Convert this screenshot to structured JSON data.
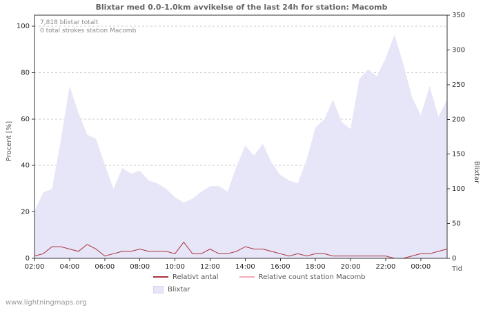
{
  "watermark": "www.lightningmaps.org",
  "chart_data": {
    "type": "area",
    "title": "Blixtar med 0.0-1.0km avvikelse of the last 24h for station: Macomb",
    "annotations": [
      "7,818 blixtar totalt",
      "0 total strokes station Macomb"
    ],
    "x_label": "Tid",
    "left_ylabel": "Procent  [%]",
    "right_ylabel": "Blixtar",
    "left_ylim": [
      0,
      100
    ],
    "right_ylim": [
      0,
      350
    ],
    "left_ticks": [
      0,
      20,
      40,
      60,
      80,
      100
    ],
    "right_ticks": [
      0,
      50,
      100,
      150,
      200,
      250,
      300,
      350
    ],
    "x_tick_labels": [
      "02:00",
      "04:00",
      "06:00",
      "08:00",
      "10:00",
      "12:00",
      "14:00",
      "16:00",
      "18:00",
      "20:00",
      "22:00",
      "00:00"
    ],
    "x_tick_hours": [
      0,
      2,
      4,
      6,
      8,
      10,
      12,
      14,
      16,
      18,
      20,
      22
    ],
    "x_span_hours": 23.5,
    "grid": "horizontal-dashed",
    "legend_position": "bottom",
    "x": [
      "02:00",
      "02:30",
      "03:00",
      "03:30",
      "04:00",
      "04:30",
      "05:00",
      "05:30",
      "06:00",
      "06:30",
      "07:00",
      "07:30",
      "08:00",
      "08:30",
      "09:00",
      "09:30",
      "10:00",
      "10:30",
      "11:00",
      "11:30",
      "12:00",
      "12:30",
      "13:00",
      "13:30",
      "14:00",
      "14:30",
      "15:00",
      "15:30",
      "16:00",
      "16:30",
      "17:00",
      "17:30",
      "18:00",
      "18:30",
      "19:00",
      "19:30",
      "20:00",
      "20:30",
      "21:00",
      "21:30",
      "22:00",
      "22:30",
      "23:00",
      "23:30",
      "00:00",
      "00:30",
      "01:00",
      "01:30"
    ],
    "series": [
      {
        "name": "Blixtar",
        "type": "area",
        "axis": "right",
        "color": "#e7e5f8",
        "values": [
          68,
          95,
          100,
          170,
          248,
          210,
          178,
          172,
          135,
          100,
          130,
          122,
          126,
          112,
          108,
          100,
          88,
          80,
          86,
          96,
          104,
          104,
          96,
          132,
          162,
          148,
          165,
          138,
          120,
          112,
          108,
          142,
          188,
          200,
          228,
          196,
          186,
          258,
          272,
          262,
          288,
          322,
          280,
          232,
          206,
          248,
          204,
          228
        ]
      },
      {
        "name": "Relativt antal",
        "type": "line",
        "axis": "left",
        "color": "#a8323a",
        "values": [
          1,
          2,
          5,
          5,
          4,
          3,
          6,
          4,
          1,
          2,
          3,
          3,
          4,
          3,
          3,
          3,
          2,
          7,
          2,
          2,
          4,
          2,
          2,
          3,
          5,
          4,
          4,
          3,
          2,
          1,
          2,
          1,
          2,
          2,
          1,
          1,
          1,
          1,
          1,
          1,
          1,
          0,
          0,
          1,
          2,
          2,
          3,
          4
        ]
      },
      {
        "name": "Relative count station Macomb",
        "type": "line",
        "axis": "left",
        "color": "#f2aab6",
        "values": [
          0,
          0,
          0,
          0,
          0,
          0,
          0,
          0,
          0,
          0,
          0,
          0,
          0,
          0,
          0,
          0,
          0,
          0,
          0,
          0,
          0,
          0,
          0,
          0,
          0,
          0,
          0,
          0,
          0,
          0,
          0,
          0,
          0,
          0,
          0,
          0,
          0,
          0,
          0,
          0,
          0,
          0,
          0,
          0,
          0,
          0,
          0,
          0
        ]
      }
    ]
  }
}
